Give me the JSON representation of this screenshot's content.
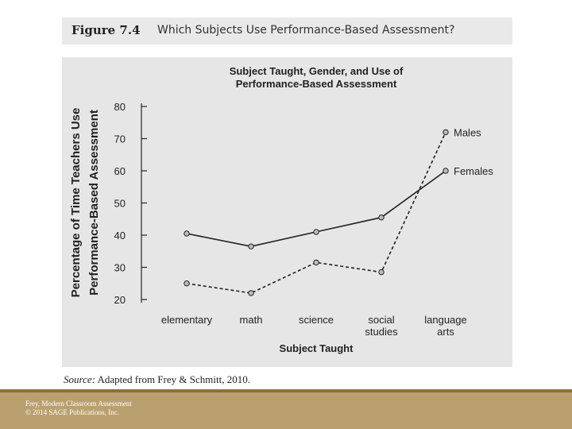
{
  "figure": {
    "number": "Figure 7.4",
    "title": "Which Subjects Use Performance-Based Assessment?"
  },
  "source": {
    "label": "Source:",
    "text": "Adapted from Frey & Schmitt, 2010."
  },
  "footer": {
    "line1": "Frey, Modern Classroom Assessment",
    "line2": "© 2014 SAGE Publications, Inc."
  },
  "chart_data": {
    "type": "line",
    "title_lines": [
      "Subject Taught, Gender, and Use of",
      "Performance-Based Assessment"
    ],
    "xlabel": "Subject Taught",
    "ylabel_lines": [
      "Percentage of Time Teachers Use",
      "Performance-Based Assessment"
    ],
    "categories": [
      [
        "elementary"
      ],
      [
        "math"
      ],
      [
        "science"
      ],
      [
        "social",
        "studies"
      ],
      [
        "language",
        "arts"
      ]
    ],
    "ylim": [
      20,
      80
    ],
    "yticks": [
      20,
      30,
      40,
      50,
      60,
      70,
      80
    ],
    "grid": false,
    "series": [
      {
        "name": "Females",
        "style": "solid",
        "values": [
          40.5,
          36.5,
          41,
          45.5,
          60
        ]
      },
      {
        "name": "Males",
        "style": "dashed",
        "values": [
          25,
          22,
          31.5,
          28.5,
          72
        ]
      }
    ],
    "colors": {
      "line": "#222222",
      "marker_fill": "#bdbdbd",
      "background": "#e6e6e6"
    }
  }
}
